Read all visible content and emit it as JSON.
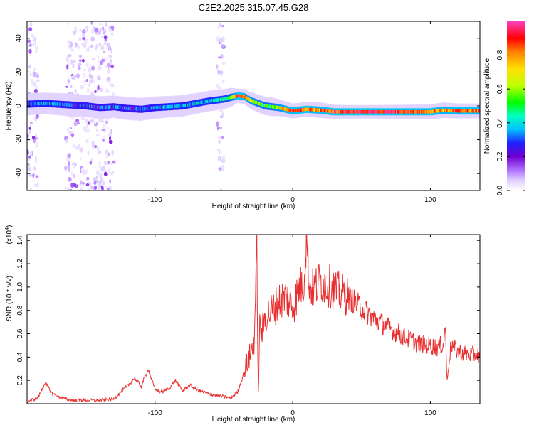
{
  "chart_data": [
    {
      "type": "heatmap",
      "title": "C2E2.2025.315.07.45.G28",
      "xlabel": "Height of straight line (km)",
      "ylabel": "Frequency (Hz)",
      "xlim": [
        -193,
        136
      ],
      "ylim": [
        -50,
        50
      ],
      "xticks": [
        -100,
        0,
        100
      ],
      "xtick_labels": [
        "-100",
        "0",
        "100"
      ],
      "yticks": [
        -40,
        -20,
        0,
        20,
        40
      ],
      "ytick_labels": [
        "-40",
        "-20",
        "0",
        "20",
        "40"
      ],
      "colorbar": {
        "label": "Normalized spectral amplitude",
        "range": [
          0,
          1
        ],
        "ticks": [
          0.0,
          0.2,
          0.4,
          0.6,
          0.8
        ],
        "tick_labels": [
          "0.0",
          "0.2",
          "0.4",
          "0.6",
          "0.8"
        ],
        "colormap": [
          "#ffffff",
          "#e0d0ff",
          "#b070ff",
          "#7000d0",
          "#2020ff",
          "#00c0ff",
          "#00ffc0",
          "#00ff00",
          "#c0ff00",
          "#ffe000",
          "#ff8000",
          "#ff0000",
          "#ff40c0"
        ]
      },
      "ridge_x": [
        -193,
        -180,
        -170,
        -160,
        -150,
        -140,
        -130,
        -120,
        -110,
        -100,
        -90,
        -80,
        -70,
        -60,
        -50,
        -45,
        -40,
        -35,
        -30,
        -25,
        -20,
        -15,
        -10,
        -5,
        0,
        10,
        20,
        30,
        40,
        60,
        80,
        100,
        110,
        120,
        136
      ],
      "ridge_freq": [
        1,
        1.5,
        1,
        0.5,
        0,
        -1,
        -0.5,
        -1.5,
        -2,
        -1,
        -0.5,
        0,
        1.5,
        3,
        4,
        5,
        6,
        5.5,
        3,
        1.5,
        0,
        -0.5,
        -1,
        -2,
        -3,
        -2,
        -2.5,
        -3.5,
        -3.5,
        -3.5,
        -3.5,
        -3.5,
        -2.5,
        -3,
        -3
      ],
      "ridge_amp": [
        0.35,
        0.4,
        0.35,
        0.3,
        0.35,
        0.3,
        0.35,
        0.3,
        0.3,
        0.35,
        0.4,
        0.4,
        0.45,
        0.45,
        0.5,
        0.55,
        0.9,
        0.8,
        0.7,
        0.65,
        0.6,
        0.6,
        0.7,
        0.8,
        0.85,
        0.85,
        0.8,
        0.9,
        0.95,
        0.95,
        0.9,
        0.85,
        0.8,
        0.85,
        0.85
      ],
      "noise_bands_x": [
        [
          -193,
          -185
        ],
        [
          -165,
          -130
        ],
        [
          -55,
          -50
        ]
      ]
    },
    {
      "type": "line",
      "xlabel": "Height of straight line (km)",
      "ylabel": "SNR (10 * v/v)",
      "ylabel_scale": "(x10",
      "ylabel_scale_exp": "4",
      "ylabel_scale_close": ")",
      "xlim": [
        -193,
        136
      ],
      "ylim": [
        0,
        1.45
      ],
      "xticks": [
        -100,
        0,
        100
      ],
      "xtick_labels": [
        "-100",
        "0",
        "100"
      ],
      "yticks": [
        0.2,
        0.4,
        0.6,
        0.8,
        1.0,
        1.2,
        1.4
      ],
      "ytick_labels": [
        "0.2",
        "0.4",
        "0.6",
        "0.8",
        "1.0",
        "1.2",
        "1.4"
      ],
      "series": [
        {
          "name": "SNR",
          "color": "#e83030",
          "x": [
            -193,
            -185,
            -180,
            -175,
            -170,
            -165,
            -160,
            -150,
            -140,
            -130,
            -125,
            -120,
            -115,
            -110,
            -105,
            -100,
            -95,
            -90,
            -85,
            -80,
            -75,
            -70,
            -65,
            -60,
            -55,
            -50,
            -45,
            -40,
            -35,
            -30,
            -28,
            -26,
            -25,
            -24,
            -22,
            -20,
            -15,
            -10,
            -5,
            0,
            5,
            8,
            10,
            12,
            15,
            20,
            25,
            30,
            40,
            50,
            60,
            70,
            80,
            90,
            100,
            105,
            110,
            111,
            112,
            115,
            120,
            125,
            130,
            136
          ],
          "y": [
            0.02,
            0.05,
            0.18,
            0.09,
            0.06,
            0.04,
            0.03,
            0.03,
            0.03,
            0.04,
            0.1,
            0.15,
            0.22,
            0.15,
            0.3,
            0.12,
            0.1,
            0.13,
            0.2,
            0.11,
            0.16,
            0.12,
            0.1,
            0.08,
            0.07,
            0.06,
            0.05,
            0.1,
            0.28,
            0.45,
            0.55,
            1.3,
            0.05,
            0.65,
            0.62,
            0.75,
            0.8,
            0.88,
            0.92,
            0.82,
            1.0,
            1.02,
            1.45,
            1.02,
            0.98,
            1.05,
            1.02,
            0.98,
            0.92,
            0.82,
            0.72,
            0.65,
            0.58,
            0.52,
            0.5,
            0.48,
            0.52,
            0.72,
            0.18,
            0.5,
            0.45,
            0.43,
            0.42,
            0.42
          ]
        }
      ]
    }
  ]
}
